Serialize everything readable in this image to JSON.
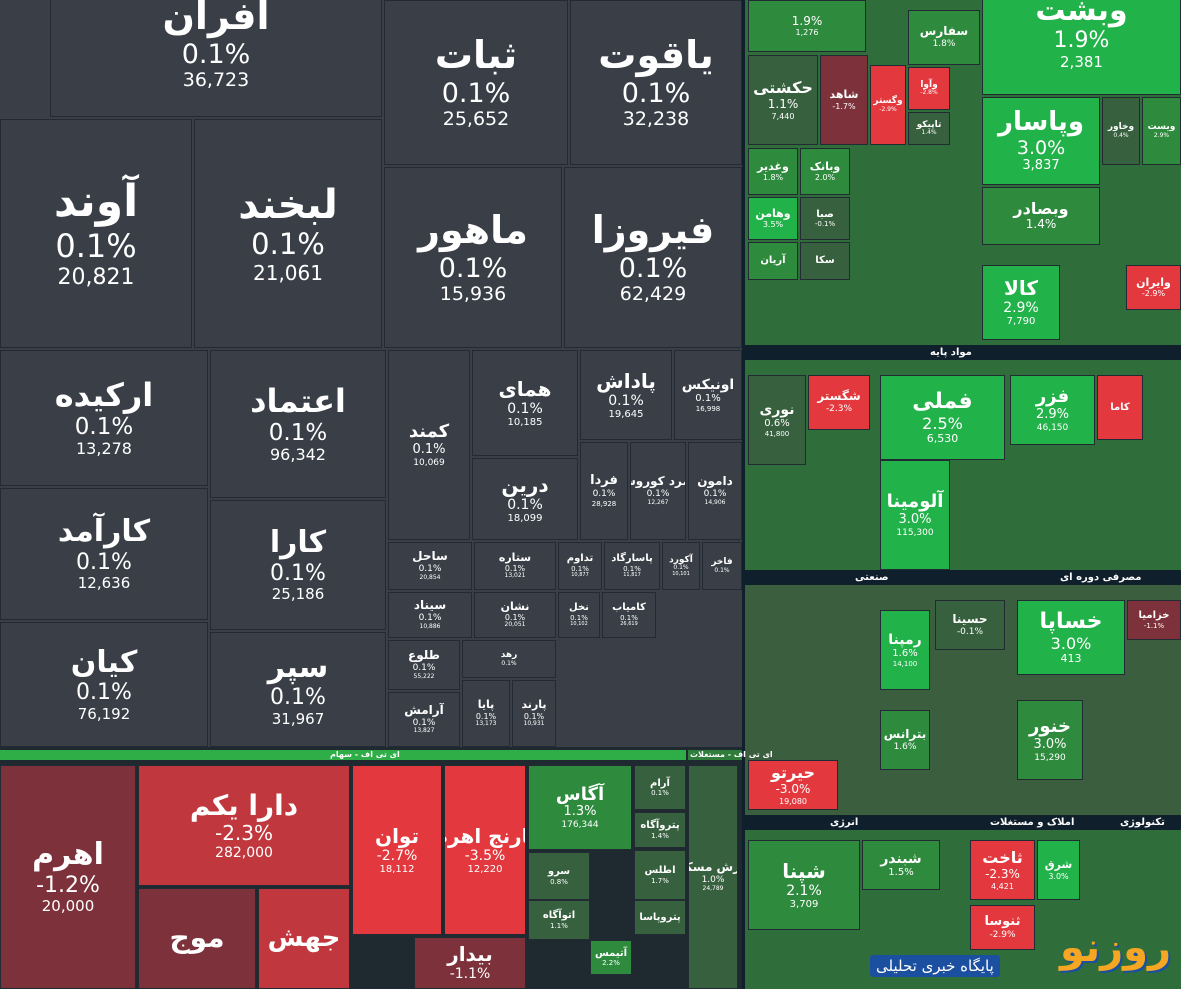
{
  "tiles": [
    {
      "name": "افران",
      "change": "0.1%",
      "volume": "36,723"
    },
    {
      "name": "ثبات",
      "change": "0.1%",
      "volume": "25,652"
    },
    {
      "name": "یاقوت",
      "change": "0.1%",
      "volume": "32,238"
    },
    {
      "name": "آوند",
      "change": "0.1%",
      "volume": "20,821"
    },
    {
      "name": "لبخند",
      "change": "0.1%",
      "volume": "21,061"
    },
    {
      "name": "ماهور",
      "change": "0.1%",
      "volume": "15,936"
    },
    {
      "name": "فیروزا",
      "change": "0.1%",
      "volume": "62,429"
    },
    {
      "name": "ارکیده",
      "change": "0.1%",
      "volume": "13,278"
    },
    {
      "name": "اعتماد",
      "change": "0.1%",
      "volume": "96,342"
    },
    {
      "name": "کارآمد",
      "change": "0.1%",
      "volume": "12,636"
    },
    {
      "name": "کارا",
      "change": "0.1%",
      "volume": "25,186"
    },
    {
      "name": "کیان",
      "change": "0.1%",
      "volume": "76,192"
    },
    {
      "name": "سپر",
      "change": "0.1%",
      "volume": "31,967"
    },
    {
      "name": "کمند",
      "change": "0.1%",
      "volume": "10,069"
    },
    {
      "name": "همای",
      "change": "0.1%",
      "volume": "10,185"
    },
    {
      "name": "پاداش",
      "change": "0.1%",
      "volume": "19,645"
    },
    {
      "name": "اونیکس",
      "change": "0.1%",
      "volume": "16,998"
    },
    {
      "name": "درین",
      "change": "0.1%",
      "volume": "18,099"
    },
    {
      "name": "فردا",
      "change": "0.1%",
      "volume": "28,928"
    },
    {
      "name": "زمرد کوروش",
      "change": "0.1%",
      "volume": "12,267"
    },
    {
      "name": "دامون",
      "change": "0.1%",
      "volume": "14,906"
    },
    {
      "name": "ساحل",
      "change": "0.1%",
      "volume": "20,854"
    },
    {
      "name": "ستاره",
      "change": "0.1%",
      "volume": "13,021"
    },
    {
      "name": "تداوم",
      "change": "0.1%",
      "volume": "10,877"
    },
    {
      "name": "پاسارگاد",
      "change": "0.1%",
      "volume": "11,817"
    },
    {
      "name": "آکورد",
      "change": "0.1%",
      "volume": "10,101"
    },
    {
      "name": "فاخر",
      "change": "0.1%"
    },
    {
      "name": "سیناد",
      "change": "0.1%",
      "volume": "10,886"
    },
    {
      "name": "نشان",
      "change": "0.1%",
      "volume": "20,051"
    },
    {
      "name": "نخل",
      "change": "0.1%",
      "volume": "10,102"
    },
    {
      "name": "کامیاب",
      "change": "0.1%",
      "volume": "26,619"
    },
    {
      "name": "طلوع",
      "change": "0.1%",
      "volume": "55,222"
    },
    {
      "name": "رهد",
      "change": "0.1%"
    },
    {
      "name": "آرامش",
      "change": "0.1%",
      "volume": "13,827"
    },
    {
      "name": "پایا",
      "change": "0.1%",
      "volume": "13,173"
    },
    {
      "name": "پارند",
      "change": "0.1%",
      "volume": "10,931"
    },
    {
      "name": "اهرم",
      "change": "-1.2%",
      "volume": "20,000"
    },
    {
      "name": "دارا یکم",
      "change": "-2.3%",
      "volume": "282,000"
    },
    {
      "name": "موج"
    },
    {
      "name": "جهش"
    },
    {
      "name": "توان",
      "change": "-2.7%",
      "volume": "18,112"
    },
    {
      "name": "نارنج اهرم",
      "change": "-3.5%",
      "volume": "12,220"
    },
    {
      "name": "بیدار",
      "change": "-1.1%"
    },
    {
      "name": "آگاس",
      "change": "1.3%",
      "volume": "176,344"
    },
    {
      "name": "آرام",
      "change": "0.1%"
    },
    {
      "name": "پتروآگاه",
      "change": "1.4%"
    },
    {
      "name": "ارزش مسکن",
      "change": "1.0%",
      "volume": "24,789"
    },
    {
      "name": "سرو",
      "change": "0.8%"
    },
    {
      "name": "اطلس",
      "change": "1.7%"
    },
    {
      "name": "اتوآگاه",
      "change": "1.1%"
    },
    {
      "name": "پتروپاسا"
    },
    {
      "name": "آتیمس",
      "change": "2.2%"
    },
    {
      "name": "وبشت",
      "change": "1.9%",
      "volume": "2,381"
    },
    {
      "change": "1.9%",
      "volume": "1,276"
    },
    {
      "name": "حکشتی",
      "change": "1.1%",
      "volume": "7,440"
    },
    {
      "name": "شاهد",
      "change": "-1.7%"
    },
    {
      "name": "وگستر",
      "change": "-2.9%"
    },
    {
      "name": "سفارس",
      "change": "1.8%"
    },
    {
      "name": "وآوا",
      "change": "-2.8%"
    },
    {
      "name": "تاپیکو",
      "change": "1.4%"
    },
    {
      "name": "وپاسار",
      "change": "3.0%",
      "volume": "3,837"
    },
    {
      "name": "وبصادر",
      "change": "1.4%"
    },
    {
      "name": "وخاور",
      "change": "0.4%"
    },
    {
      "name": "ویست",
      "change": "2.9%"
    },
    {
      "name": "وغدیر",
      "change": "1.8%"
    },
    {
      "name": "وبانک",
      "change": "2.0%"
    },
    {
      "name": "وهامن",
      "change": "3.5%"
    },
    {
      "name": "صبا",
      "change": "-0.1%"
    },
    {
      "name": "آریان"
    },
    {
      "name": "سکا"
    },
    {
      "name": "کالا",
      "change": "2.9%",
      "volume": "7,790"
    },
    {
      "name": "وایران",
      "change": "-2.9%"
    },
    {
      "name": "نوری",
      "change": "0.6%",
      "volume": "41,800"
    },
    {
      "name": "شگستر",
      "change": "-2.3%"
    },
    {
      "name": "فملی",
      "change": "2.5%",
      "volume": "6,530"
    },
    {
      "name": "فزر",
      "change": "2.9%",
      "volume": "46,150"
    },
    {
      "name": "کاما"
    },
    {
      "name": "آلومینا",
      "change": "3.0%",
      "volume": "115,300"
    },
    {
      "name": "خساپا",
      "change": "3.0%",
      "volume": "413"
    },
    {
      "name": "خزامیا",
      "change": "-1.1%"
    },
    {
      "name": "رمپنا",
      "change": "1.6%",
      "volume": "14,100"
    },
    {
      "name": "حسینا",
      "change": "-0.1%"
    },
    {
      "name": "حیرتو",
      "change": "-3.0%",
      "volume": "19,080"
    },
    {
      "name": "خنور",
      "change": "3.0%",
      "volume": "15,290"
    },
    {
      "name": "بترانس",
      "change": "1.6%"
    },
    {
      "name": "شپنا",
      "change": "2.1%",
      "volume": "3,709"
    },
    {
      "name": "شبندر",
      "change": "1.5%"
    },
    {
      "name": "ثاخت",
      "change": "-2.3%",
      "volume": "4,421"
    },
    {
      "name": "شرق",
      "change": "3.0%"
    },
    {
      "name": "ثنوسا",
      "change": "-2.9%"
    }
  ],
  "sections": [
    "ای تی اف - سهام",
    "ای تی اف - مستغلات",
    "مواد پایه",
    "صنعتی",
    "مصرفی دوره ای",
    "انرژی",
    "املاک و مستغلات",
    "تکنولوژی"
  ],
  "watermark": {
    "logo": "روزنو",
    "tagline": "پایگاه خبری تحلیلی"
  }
}
